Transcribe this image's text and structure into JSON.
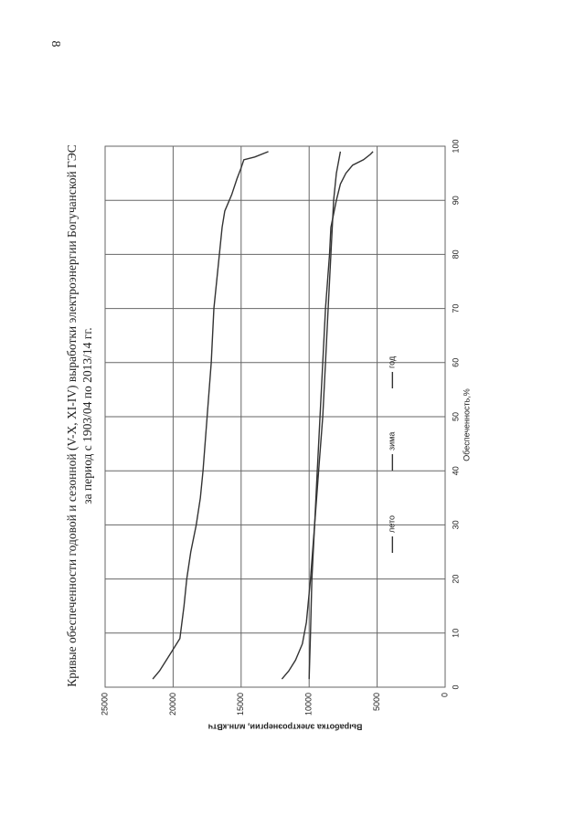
{
  "page_number": "8",
  "chart_data": {
    "type": "line",
    "title": "Кривые обеспеченности годовой и сезонной  (V-X, XI-IV) выработки электроэнергии Богучанской ГЭС",
    "subtitle": "за период с 1903/04 по 2013/14 гг.",
    "x_label": "Обеспеченность,%",
    "y_label": "Выработка электроэнергии, млн.кВтч",
    "xlim": [
      0,
      100
    ],
    "xticks": [
      0,
      10,
      20,
      30,
      40,
      50,
      60,
      70,
      80,
      90,
      100
    ],
    "ylim": [
      0,
      25000
    ],
    "yticks": [
      0,
      5000,
      10000,
      15000,
      20000,
      25000
    ],
    "grid": true,
    "legend": "lower center",
    "series": [
      {
        "name": "лето",
        "color": "#333333",
        "x": [
          1.5,
          3,
          5,
          8,
          12,
          20,
          30,
          40,
          50,
          60,
          70,
          80,
          90,
          95,
          99
        ],
        "values": [
          12000,
          11500,
          11000,
          10500,
          10200,
          9900,
          9600,
          9300,
          9000,
          8800,
          8600,
          8400,
          8200,
          8000,
          7700
        ]
      },
      {
        "name": "зима",
        "color": "#333333",
        "x": [
          1.5,
          10,
          20,
          30,
          40,
          50,
          60,
          70,
          80,
          85,
          90,
          93,
          95,
          96.5,
          97.5,
          98.5,
          99
        ],
        "values": [
          10000,
          9900,
          9800,
          9600,
          9400,
          9200,
          9000,
          8800,
          8500,
          8400,
          8000,
          7700,
          7300,
          6800,
          6000,
          5500,
          5300
        ]
      },
      {
        "name": "год",
        "color": "#333333",
        "x": [
          1.5,
          3,
          5,
          7,
          9,
          15,
          20,
          25,
          30,
          35,
          40,
          50,
          60,
          70,
          75,
          80,
          85,
          88,
          91,
          94,
          96,
          97.5,
          98,
          99
        ],
        "values": [
          21500,
          21000,
          20500,
          20000,
          19500,
          19200,
          19000,
          18700,
          18300,
          18000,
          17800,
          17500,
          17200,
          17000,
          16800,
          16600,
          16400,
          16200,
          15700,
          15300,
          15000,
          14800,
          14000,
          13000
        ]
      }
    ]
  }
}
